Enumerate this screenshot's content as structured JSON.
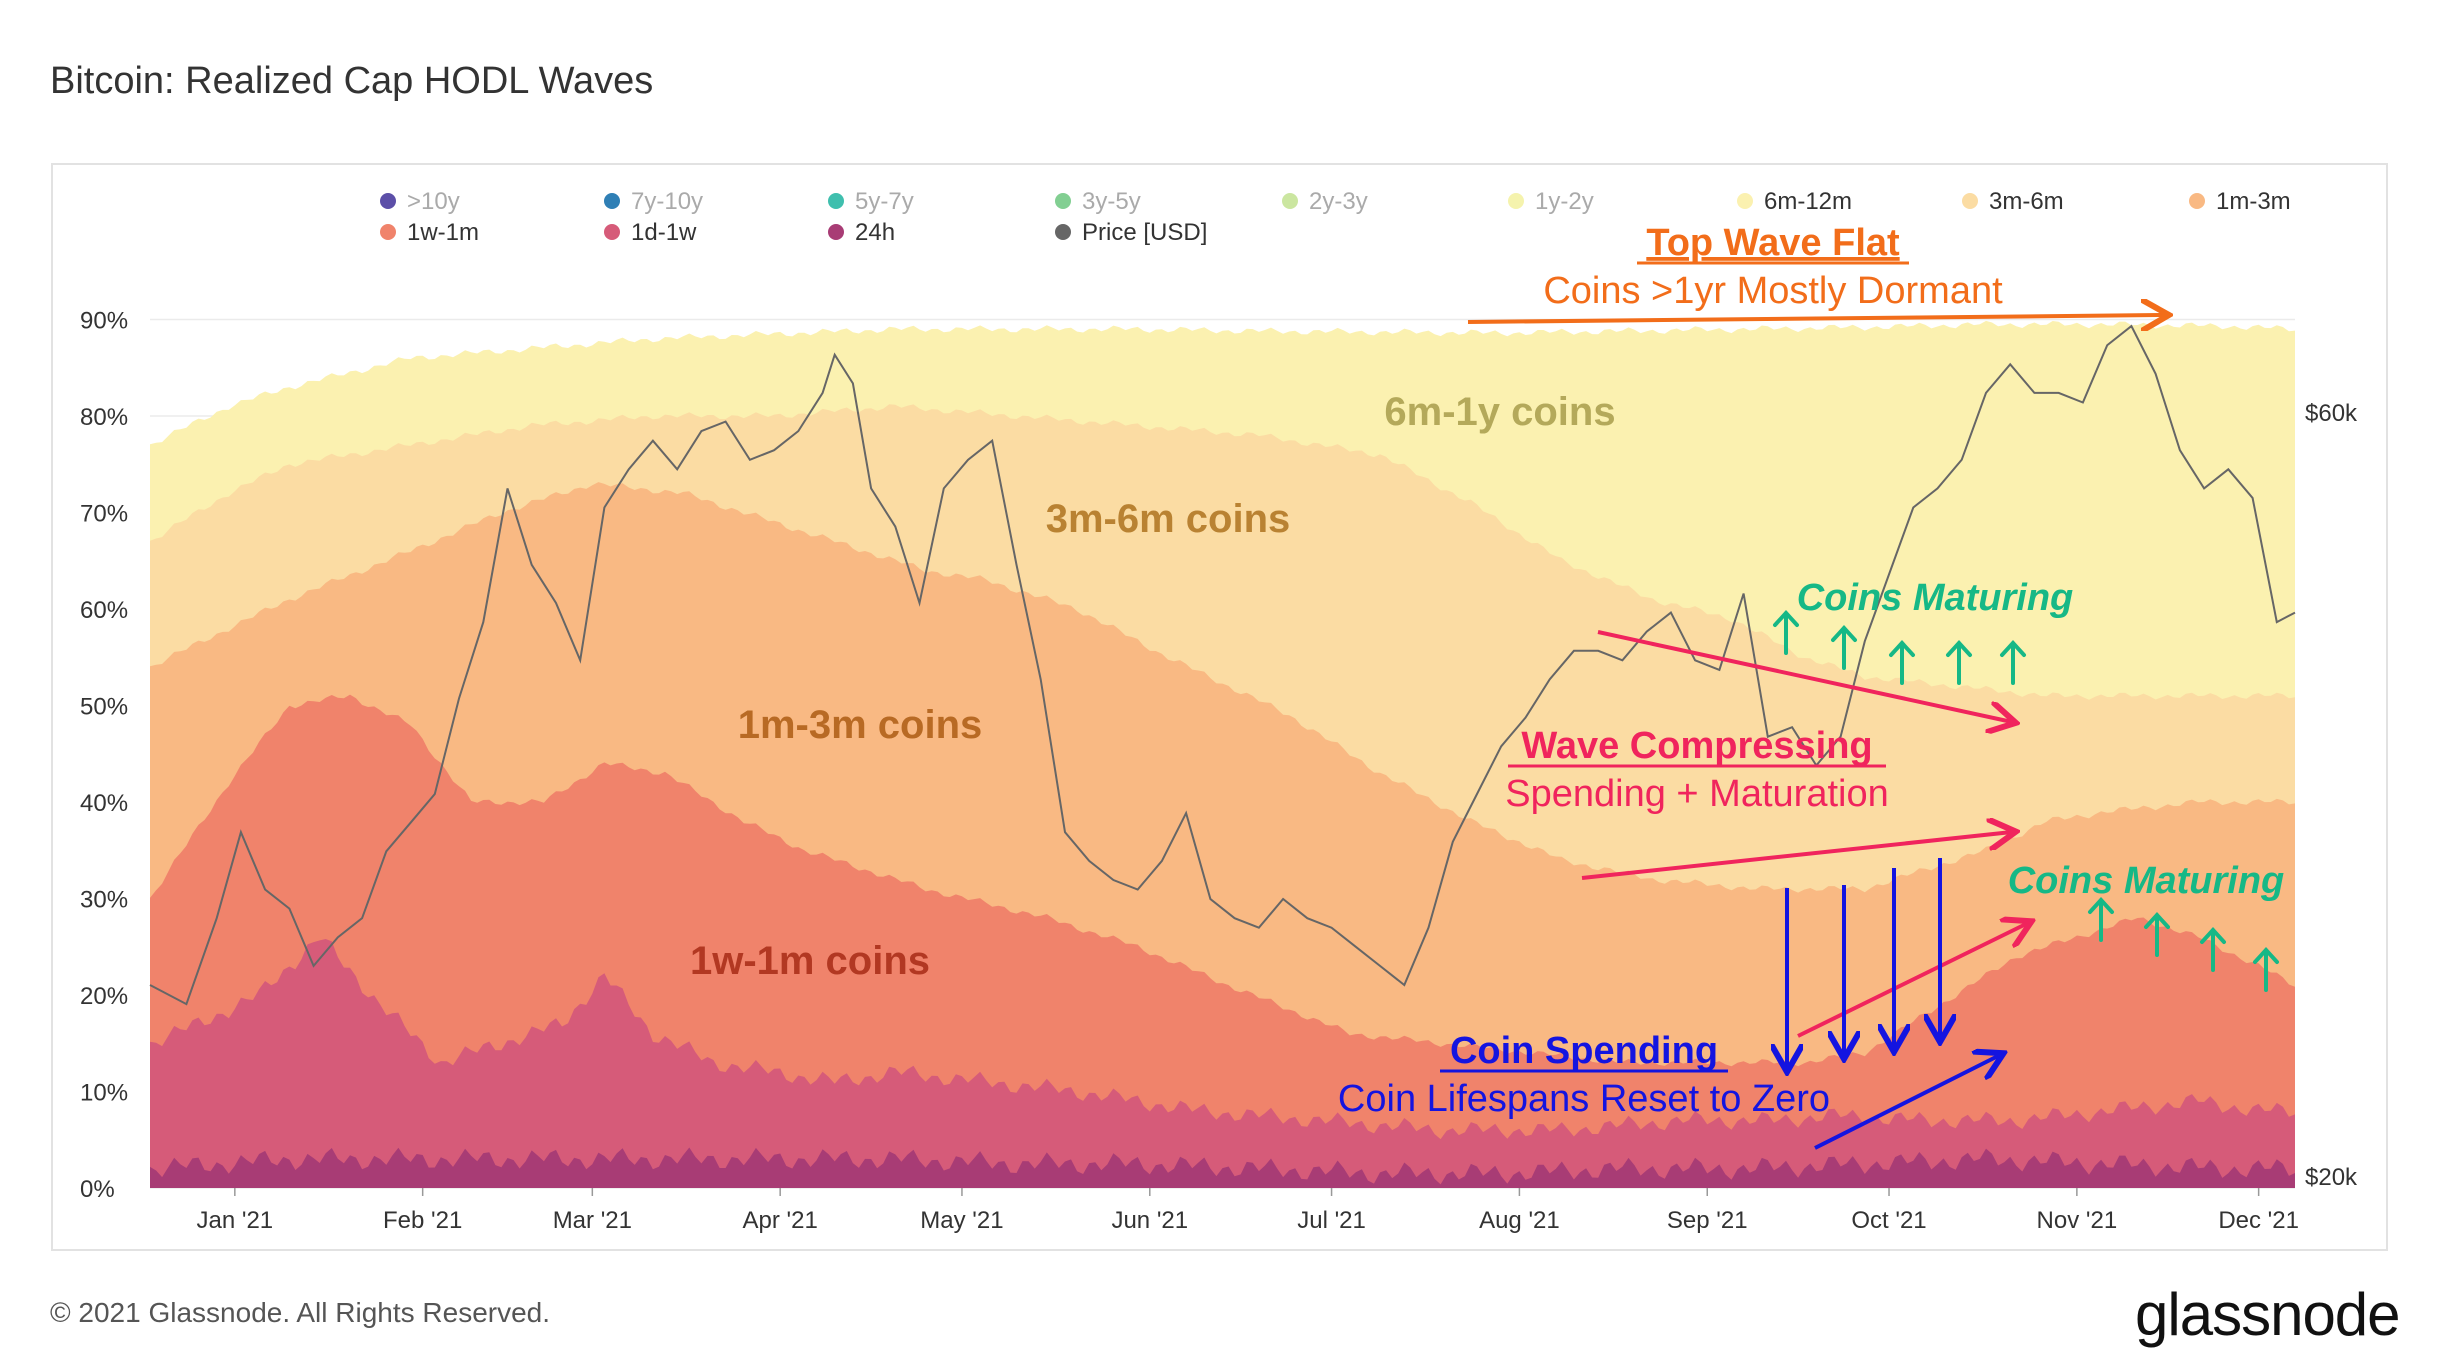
{
  "page": {
    "title": "Bitcoin: Realized Cap HODL Waves",
    "footer": "© 2021 Glassnode. All Rights Reserved.",
    "logo": "glassnode",
    "watermark": "glassnode"
  },
  "colors": {
    "gt10y": "#5c4fa8",
    "y7_10": "#2f7fb5",
    "y5_7": "#3fbfae",
    "y3_5": "#82cf92",
    "y2_3": "#cbe6a0",
    "y1_2": "#f5f3ad",
    "m6_12": "#fbf1b0",
    "m3_6": "#fbdca3",
    "m1_3": "#f9b983",
    "w1_1m": "#f0836b",
    "d1_1w": "#d65b79",
    "h24": "#a83c75",
    "price": "#666666",
    "orange_annot": "#f26d1a",
    "pink_annot": "#f0245d",
    "green_annot": "#16b886",
    "blue_annot": "#1414e0"
  },
  "chart_data": {
    "type": "area",
    "title": "Bitcoin: Realized Cap HODL Waves",
    "x_ticks": [
      "Jan '21",
      "Feb '21",
      "Mar '21",
      "Apr '21",
      "May '21",
      "Jun '21",
      "Jul '21",
      "Aug '21",
      "Sep '21",
      "Oct '21",
      "Nov '21",
      "Dec '21"
    ],
    "x_tick_days": [
      11,
      42,
      70,
      101,
      131,
      162,
      192,
      223,
      254,
      284,
      315,
      345
    ],
    "x_range_days": [
      -3,
      351
    ],
    "y_left": {
      "ticks": [
        "0%",
        "10%",
        "20%",
        "30%",
        "40%",
        "50%",
        "60%",
        "70%",
        "80%",
        "90%"
      ],
      "range": [
        0,
        90
      ]
    },
    "y_right": {
      "ticks": [
        "$20k",
        "$60k"
      ],
      "range_usd": [
        20000,
        65000
      ]
    },
    "legend": [
      {
        "name": ">10y",
        "key": "gt10y",
        "active": false
      },
      {
        "name": "7y-10y",
        "key": "y7_10",
        "active": false
      },
      {
        "name": "5y-7y",
        "key": "y5_7",
        "active": false
      },
      {
        "name": "3y-5y",
        "key": "y3_5",
        "active": false
      },
      {
        "name": "2y-3y",
        "key": "y2_3",
        "active": false
      },
      {
        "name": "1y-2y",
        "key": "y1_2",
        "active": false
      },
      {
        "name": "6m-12m",
        "key": "m6_12",
        "active": true
      },
      {
        "name": "3m-6m",
        "key": "m3_6",
        "active": true
      },
      {
        "name": "1m-3m",
        "key": "m1_3",
        "active": true
      },
      {
        "name": "1w-1m",
        "key": "w1_1m",
        "active": true
      },
      {
        "name": "1d-1w",
        "key": "d1_1w",
        "active": true
      },
      {
        "name": "24h",
        "key": "h24",
        "active": true
      },
      {
        "name": "Price [USD]",
        "key": "price",
        "active": true
      }
    ],
    "cumulative_series": [
      {
        "name": "24h",
        "key": "h24",
        "top": [
          [
            -3,
            2
          ],
          [
            20,
            3
          ],
          [
            40,
            3
          ],
          [
            60,
            3
          ],
          [
            80,
            3
          ],
          [
            100,
            3
          ],
          [
            120,
            3
          ],
          [
            140,
            2.5
          ],
          [
            160,
            2.5
          ],
          [
            180,
            2
          ],
          [
            200,
            1.5
          ],
          [
            220,
            1.5
          ],
          [
            240,
            2
          ],
          [
            260,
            2
          ],
          [
            280,
            2.5
          ],
          [
            300,
            3
          ],
          [
            320,
            2.5
          ],
          [
            340,
            2
          ],
          [
            351,
            2
          ]
        ]
      },
      {
        "name": "1d-1w",
        "key": "d1_1w",
        "top": [
          [
            -3,
            15
          ],
          [
            5,
            17
          ],
          [
            15,
            20
          ],
          [
            25,
            26
          ],
          [
            35,
            19
          ],
          [
            45,
            13
          ],
          [
            55,
            15
          ],
          [
            65,
            17
          ],
          [
            72,
            22
          ],
          [
            80,
            16
          ],
          [
            90,
            13
          ],
          [
            100,
            12
          ],
          [
            110,
            11
          ],
          [
            120,
            12
          ],
          [
            135,
            11
          ],
          [
            150,
            10
          ],
          [
            170,
            8
          ],
          [
            190,
            7
          ],
          [
            210,
            6
          ],
          [
            230,
            6
          ],
          [
            250,
            7
          ],
          [
            265,
            7
          ],
          [
            275,
            7.5
          ],
          [
            290,
            7
          ],
          [
            305,
            7
          ],
          [
            320,
            8
          ],
          [
            335,
            9
          ],
          [
            345,
            8
          ],
          [
            351,
            8
          ]
        ]
      },
      {
        "name": "1w-1m",
        "key": "w1_1m",
        "top": [
          [
            -3,
            30
          ],
          [
            10,
            42
          ],
          [
            20,
            50
          ],
          [
            30,
            51
          ],
          [
            40,
            48
          ],
          [
            50,
            40
          ],
          [
            62,
            40
          ],
          [
            72,
            44
          ],
          [
            82,
            43
          ],
          [
            95,
            38
          ],
          [
            105,
            35
          ],
          [
            125,
            31
          ],
          [
            145,
            28
          ],
          [
            160,
            25
          ],
          [
            175,
            21
          ],
          [
            195,
            16
          ],
          [
            210,
            15
          ],
          [
            225,
            14
          ],
          [
            240,
            13
          ],
          [
            255,
            13
          ],
          [
            270,
            13
          ],
          [
            280,
            14
          ],
          [
            295,
            20
          ],
          [
            305,
            24
          ],
          [
            315,
            26
          ],
          [
            325,
            28
          ],
          [
            335,
            26
          ],
          [
            345,
            23
          ],
          [
            351,
            21
          ]
        ]
      },
      {
        "name": "1m-3m",
        "key": "m1_3",
        "top": [
          [
            -3,
            54
          ],
          [
            10,
            58
          ],
          [
            20,
            61
          ],
          [
            40,
            66
          ],
          [
            55,
            70
          ],
          [
            70,
            73
          ],
          [
            85,
            72
          ],
          [
            100,
            69
          ],
          [
            115,
            66
          ],
          [
            125,
            64
          ],
          [
            135,
            63
          ],
          [
            150,
            60
          ],
          [
            165,
            55
          ],
          [
            185,
            49
          ],
          [
            200,
            43
          ],
          [
            215,
            38
          ],
          [
            230,
            34
          ],
          [
            245,
            32
          ],
          [
            262,
            31
          ],
          [
            280,
            31
          ],
          [
            290,
            33
          ],
          [
            300,
            35
          ],
          [
            310,
            38
          ],
          [
            320,
            39
          ],
          [
            335,
            40
          ],
          [
            351,
            40
          ]
        ]
      },
      {
        "name": "3m-6m",
        "key": "m3_6",
        "top": [
          [
            -3,
            67
          ],
          [
            10,
            72
          ],
          [
            20,
            75
          ],
          [
            40,
            77
          ],
          [
            60,
            79
          ],
          [
            80,
            80
          ],
          [
            100,
            80
          ],
          [
            120,
            81
          ],
          [
            140,
            80
          ],
          [
            160,
            79
          ],
          [
            180,
            78
          ],
          [
            200,
            76
          ],
          [
            215,
            71
          ],
          [
            230,
            65
          ],
          [
            245,
            61
          ],
          [
            258,
            59
          ],
          [
            270,
            55
          ],
          [
            280,
            53
          ],
          [
            295,
            52
          ],
          [
            310,
            51
          ],
          [
            330,
            51
          ],
          [
            351,
            51
          ]
        ]
      },
      {
        "name": "6m-12m",
        "key": "m6_12",
        "top": [
          [
            -3,
            77
          ],
          [
            10,
            81
          ],
          [
            20,
            83
          ],
          [
            40,
            86
          ],
          [
            60,
            87
          ],
          [
            80,
            88
          ],
          [
            100,
            88.5
          ],
          [
            120,
            89
          ],
          [
            140,
            89
          ],
          [
            160,
            89
          ],
          [
            180,
            88.8
          ],
          [
            200,
            88.7
          ],
          [
            220,
            88.6
          ],
          [
            240,
            88.8
          ],
          [
            260,
            89
          ],
          [
            280,
            89.2
          ],
          [
            300,
            89.5
          ],
          [
            320,
            89.5
          ],
          [
            340,
            89.3
          ],
          [
            351,
            89
          ]
        ]
      }
    ],
    "price_usd": [
      [
        -3,
        30000
      ],
      [
        3,
        29000
      ],
      [
        8,
        33500
      ],
      [
        12,
        38000
      ],
      [
        16,
        35000
      ],
      [
        20,
        34000
      ],
      [
        24,
        31000
      ],
      [
        28,
        32500
      ],
      [
        32,
        33500
      ],
      [
        36,
        37000
      ],
      [
        40,
        38500
      ],
      [
        44,
        40000
      ],
      [
        48,
        45000
      ],
      [
        52,
        49000
      ],
      [
        56,
        56000
      ],
      [
        60,
        52000
      ],
      [
        64,
        50000
      ],
      [
        68,
        47000
      ],
      [
        72,
        55000
      ],
      [
        76,
        57000
      ],
      [
        80,
        58500
      ],
      [
        84,
        57000
      ],
      [
        88,
        59000
      ],
      [
        92,
        59500
      ],
      [
        96,
        57500
      ],
      [
        100,
        58000
      ],
      [
        104,
        59000
      ],
      [
        108,
        61000
      ],
      [
        110,
        63000
      ],
      [
        113,
        61500
      ],
      [
        116,
        56000
      ],
      [
        120,
        54000
      ],
      [
        124,
        50000
      ],
      [
        128,
        56000
      ],
      [
        132,
        57500
      ],
      [
        136,
        58500
      ],
      [
        140,
        52000
      ],
      [
        144,
        46000
      ],
      [
        148,
        38000
      ],
      [
        152,
        36500
      ],
      [
        156,
        35500
      ],
      [
        160,
        35000
      ],
      [
        164,
        36500
      ],
      [
        168,
        39000
      ],
      [
        172,
        34500
      ],
      [
        176,
        33500
      ],
      [
        180,
        33000
      ],
      [
        184,
        34500
      ],
      [
        188,
        33500
      ],
      [
        192,
        33000
      ],
      [
        196,
        32000
      ],
      [
        200,
        31000
      ],
      [
        204,
        30000
      ],
      [
        208,
        33000
      ],
      [
        212,
        37500
      ],
      [
        216,
        40000
      ],
      [
        220,
        42500
      ],
      [
        224,
        44000
      ],
      [
        228,
        46000
      ],
      [
        232,
        47500
      ],
      [
        236,
        47500
      ],
      [
        240,
        47000
      ],
      [
        244,
        48500
      ],
      [
        248,
        49500
      ],
      [
        252,
        47000
      ],
      [
        256,
        46500
      ],
      [
        260,
        50500
      ],
      [
        264,
        43000
      ],
      [
        268,
        43500
      ],
      [
        272,
        41500
      ],
      [
        276,
        43000
      ],
      [
        280,
        48000
      ],
      [
        284,
        51500
      ],
      [
        288,
        55000
      ],
      [
        292,
        56000
      ],
      [
        296,
        57500
      ],
      [
        300,
        61000
      ],
      [
        304,
        62500
      ],
      [
        308,
        61000
      ],
      [
        312,
        61000
      ],
      [
        316,
        60500
      ],
      [
        320,
        63500
      ],
      [
        324,
        64500
      ],
      [
        328,
        62000
      ],
      [
        332,
        58000
      ],
      [
        336,
        56000
      ],
      [
        340,
        57000
      ],
      [
        344,
        55500
      ],
      [
        348,
        49000
      ],
      [
        351,
        49500
      ]
    ],
    "annotations": {
      "band_6m1y": "6m-1y coins",
      "band_3m6m": "3m-6m coins",
      "band_1m3m": "1m-3m coins",
      "band_1w1m": "1w-1m coins",
      "top_wave_title": "Top Wave Flat",
      "top_wave_sub": "Coins >1yr Mostly Dormant",
      "maturing_1": "Coins Maturing",
      "maturing_2": "Coins Maturing",
      "compress_title": "Wave Compressing",
      "compress_sub": "Spending + Maturation",
      "spend_title": "Coin Spending",
      "spend_sub": "Coin Lifespans Reset to Zero"
    }
  }
}
